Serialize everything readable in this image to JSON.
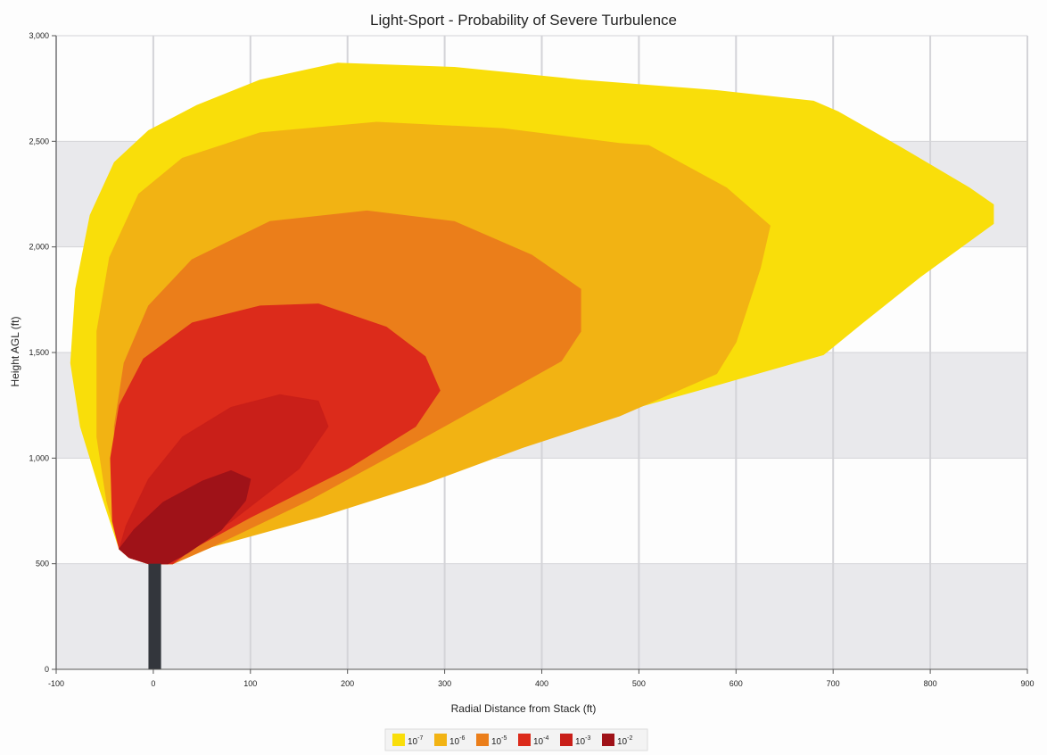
{
  "chart_data": {
    "type": "area",
    "title": "Light-Sport - Probability of Severe Turbulence",
    "xlabel": "Radial Distance from Stack (ft)",
    "ylabel": "Height AGL (ft)",
    "xlim": [
      -100,
      900
    ],
    "ylim": [
      0,
      3000
    ],
    "x_ticks": [
      -100,
      0,
      100,
      200,
      300,
      400,
      500,
      600,
      700,
      800,
      900
    ],
    "x_tick_labels": [
      "-100",
      "0",
      "100",
      "200",
      "300",
      "400",
      "500",
      "600",
      "700",
      "800",
      "900"
    ],
    "y_ticks": [
      0,
      500,
      1000,
      1500,
      2000,
      2500,
      3000
    ],
    "y_tick_labels": [
      "0",
      "500",
      "1,000",
      "1,500",
      "2,000",
      "2,500",
      "3,000"
    ],
    "grid": true,
    "legend_position": "bottom",
    "stack": {
      "x_range": [
        -5,
        8
      ],
      "top": 500,
      "color": "#33363c"
    },
    "series": [
      {
        "name_base": "10",
        "name_exp": "-7",
        "color": "#f9de0a",
        "outline": [
          [
            -35,
            570
          ],
          [
            -55,
            850
          ],
          [
            -75,
            1150
          ],
          [
            -85,
            1450
          ],
          [
            -80,
            1800
          ],
          [
            -65,
            2150
          ],
          [
            -40,
            2400
          ],
          [
            -5,
            2550
          ],
          [
            45,
            2670
          ],
          [
            110,
            2790
          ],
          [
            190,
            2870
          ],
          [
            310,
            2850
          ],
          [
            440,
            2790
          ],
          [
            580,
            2740
          ],
          [
            680,
            2690
          ],
          [
            705,
            2640
          ],
          [
            770,
            2470
          ],
          [
            840,
            2280
          ],
          [
            865,
            2200
          ],
          [
            865,
            2110
          ],
          [
            790,
            1860
          ],
          [
            730,
            1640
          ],
          [
            690,
            1490
          ],
          [
            560,
            1320
          ],
          [
            420,
            1140
          ],
          [
            300,
            930
          ],
          [
            190,
            780
          ],
          [
            60,
            580
          ],
          [
            20,
            500
          ],
          [
            -5,
            500
          ],
          [
            -25,
            530
          ]
        ]
      },
      {
        "name_base": "10",
        "name_exp": "-6",
        "color": "#f2b313",
        "outline": [
          [
            -35,
            570
          ],
          [
            -48,
            800
          ],
          [
            -58,
            1100
          ],
          [
            -58,
            1600
          ],
          [
            -45,
            1950
          ],
          [
            -15,
            2250
          ],
          [
            30,
            2420
          ],
          [
            110,
            2540
          ],
          [
            230,
            2590
          ],
          [
            360,
            2560
          ],
          [
            480,
            2490
          ],
          [
            510,
            2480
          ],
          [
            590,
            2280
          ],
          [
            635,
            2100
          ],
          [
            625,
            1900
          ],
          [
            600,
            1550
          ],
          [
            580,
            1400
          ],
          [
            480,
            1200
          ],
          [
            380,
            1050
          ],
          [
            280,
            880
          ],
          [
            170,
            720
          ],
          [
            60,
            580
          ],
          [
            20,
            500
          ],
          [
            -5,
            500
          ],
          [
            -25,
            530
          ]
        ]
      },
      {
        "name_base": "10",
        "name_exp": "-5",
        "color": "#eb7e1a",
        "outline": [
          [
            -35,
            570
          ],
          [
            -40,
            800
          ],
          [
            -40,
            1150
          ],
          [
            -30,
            1450
          ],
          [
            -5,
            1720
          ],
          [
            40,
            1940
          ],
          [
            120,
            2120
          ],
          [
            220,
            2170
          ],
          [
            310,
            2120
          ],
          [
            390,
            1960
          ],
          [
            440,
            1800
          ],
          [
            440,
            1600
          ],
          [
            420,
            1460
          ],
          [
            350,
            1280
          ],
          [
            260,
            1050
          ],
          [
            160,
            800
          ],
          [
            60,
            580
          ],
          [
            20,
            500
          ],
          [
            -5,
            500
          ],
          [
            -25,
            530
          ]
        ]
      },
      {
        "name_base": "10",
        "name_exp": "-4",
        "color": "#dc2b1b",
        "outline": [
          [
            -35,
            570
          ],
          [
            -42,
            700
          ],
          [
            -44,
            1000
          ],
          [
            -35,
            1250
          ],
          [
            -10,
            1470
          ],
          [
            40,
            1640
          ],
          [
            110,
            1720
          ],
          [
            170,
            1730
          ],
          [
            240,
            1620
          ],
          [
            280,
            1480
          ],
          [
            295,
            1320
          ],
          [
            270,
            1150
          ],
          [
            200,
            950
          ],
          [
            100,
            720
          ],
          [
            40,
            570
          ],
          [
            20,
            500
          ],
          [
            -5,
            500
          ],
          [
            -25,
            530
          ]
        ]
      },
      {
        "name_base": "10",
        "name_exp": "-3",
        "color": "#c91f19",
        "outline": [
          [
            -35,
            570
          ],
          [
            -28,
            680
          ],
          [
            -5,
            900
          ],
          [
            30,
            1100
          ],
          [
            80,
            1240
          ],
          [
            130,
            1300
          ],
          [
            170,
            1270
          ],
          [
            180,
            1150
          ],
          [
            150,
            950
          ],
          [
            80,
            700
          ],
          [
            30,
            560
          ],
          [
            15,
            500
          ],
          [
            -5,
            500
          ],
          [
            -25,
            530
          ]
        ]
      },
      {
        "name_base": "10",
        "name_exp": "-2",
        "color": "#9f1218",
        "outline": [
          [
            -35,
            570
          ],
          [
            -20,
            660
          ],
          [
            10,
            790
          ],
          [
            50,
            890
          ],
          [
            80,
            940
          ],
          [
            100,
            900
          ],
          [
            95,
            800
          ],
          [
            70,
            660
          ],
          [
            35,
            550
          ],
          [
            15,
            500
          ],
          [
            -5,
            500
          ],
          [
            -25,
            530
          ]
        ]
      }
    ]
  }
}
